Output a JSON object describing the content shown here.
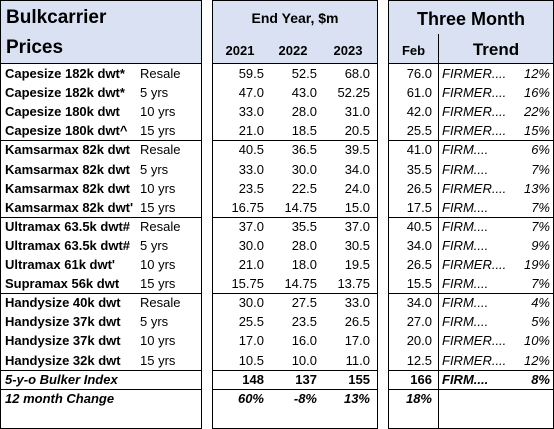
{
  "header": {
    "title_line1": "Bulkcarrier",
    "title_line2": "Prices",
    "end_year_title": "End Year, $m",
    "years": [
      "2021",
      "2022",
      "2023"
    ],
    "three_month_title": "Three Month",
    "feb_label": "Feb",
    "trend_label": "Trend"
  },
  "rows": [
    {
      "name": "Capesize 182k dwt*",
      "age": "Resale",
      "y2021": "59.5",
      "y2022": "52.5",
      "y2023": "68.0",
      "feb": "76.0",
      "trend": "FIRMER....",
      "pct": "12%"
    },
    {
      "name": "Capesize 182k dwt*",
      "age": "5 yrs",
      "y2021": "47.0",
      "y2022": "43.0",
      "y2023": "52.25",
      "feb": "61.0",
      "trend": "FIRMER....",
      "pct": "16%"
    },
    {
      "name": "Capesize 180k dwt",
      "age": "10 yrs",
      "y2021": "33.0",
      "y2022": "28.0",
      "y2023": "31.0",
      "feb": "42.0",
      "trend": "FIRMER....",
      "pct": "22%"
    },
    {
      "name": "Capesize 180k dwt^",
      "age": "15 yrs",
      "y2021": "21.0",
      "y2022": "18.5",
      "y2023": "20.5",
      "feb": "25.5",
      "trend": "FIRMER....",
      "pct": "15%"
    },
    {
      "name": "Kamsarmax 82k dwt",
      "age": "Resale",
      "y2021": "40.5",
      "y2022": "36.5",
      "y2023": "39.5",
      "feb": "41.0",
      "trend": "FIRM....",
      "pct": "6%"
    },
    {
      "name": "Kamsarmax 82k dwt",
      "age": "5 yrs",
      "y2021": "33.0",
      "y2022": "30.0",
      "y2023": "34.0",
      "feb": "35.5",
      "trend": "FIRM....",
      "pct": "7%"
    },
    {
      "name": "Kamsarmax 82k dwt",
      "age": "10 yrs",
      "y2021": "23.5",
      "y2022": "22.5",
      "y2023": "24.0",
      "feb": "26.5",
      "trend": "FIRMER....",
      "pct": "13%"
    },
    {
      "name": "Kamsarmax 82k dwt'",
      "age": "15 yrs",
      "y2021": "16.75",
      "y2022": "14.75",
      "y2023": "15.0",
      "feb": "17.5",
      "trend": "FIRM....",
      "pct": "7%"
    },
    {
      "name": "Ultramax 63.5k dwt#",
      "age": "Resale",
      "y2021": "37.0",
      "y2022": "35.5",
      "y2023": "37.0",
      "feb": "40.5",
      "trend": "FIRM....",
      "pct": "7%"
    },
    {
      "name": "Ultramax 63.5k dwt#",
      "age": "5 yrs",
      "y2021": "30.0",
      "y2022": "28.0",
      "y2023": "30.5",
      "feb": "34.0",
      "trend": "FIRM....",
      "pct": "9%"
    },
    {
      "name": "Ultramax 61k dwt'",
      "age": "10 yrs",
      "y2021": "21.0",
      "y2022": "18.0",
      "y2023": "19.5",
      "feb": "26.5",
      "trend": "FIRMER....",
      "pct": "19%"
    },
    {
      "name": "Supramax 56k dwt",
      "age": "15 yrs",
      "y2021": "15.75",
      "y2022": "14.75",
      "y2023": "13.75",
      "feb": "15.5",
      "trend": "FIRM....",
      "pct": "7%"
    },
    {
      "name": "Handysize 40k dwt",
      "age": "Resale",
      "y2021": "30.0",
      "y2022": "27.5",
      "y2023": "33.0",
      "feb": "34.0",
      "trend": "FIRM....",
      "pct": "4%"
    },
    {
      "name": "Handysize 37k dwt",
      "age": "5 yrs",
      "y2021": "25.5",
      "y2022": "23.5",
      "y2023": "26.5",
      "feb": "27.0",
      "trend": "FIRM....",
      "pct": "5%"
    },
    {
      "name": "Handysize 37k dwt",
      "age": "10 yrs",
      "y2021": "17.0",
      "y2022": "16.0",
      "y2023": "17.0",
      "feb": "20.0",
      "trend": "FIRMER....",
      "pct": "10%"
    },
    {
      "name": "Handysize 32k dwt",
      "age": "15 yrs",
      "y2021": "10.5",
      "y2022": "10.0",
      "y2023": "11.0",
      "feb": "12.5",
      "trend": "FIRMER....",
      "pct": "12%"
    }
  ],
  "index_row": {
    "name": "5-y-o Bulker Index",
    "y2021": "148",
    "y2022": "137",
    "y2023": "155",
    "feb": "166",
    "trend": "FIRM....",
    "pct": "8%"
  },
  "change_row": {
    "name": "12 month Change",
    "y2021": "60%",
    "y2022": "-8%",
    "y2023": "13%",
    "feb": "18%"
  },
  "colors": {
    "header_bg": "#d9e1f2",
    "border": "#000000"
  }
}
